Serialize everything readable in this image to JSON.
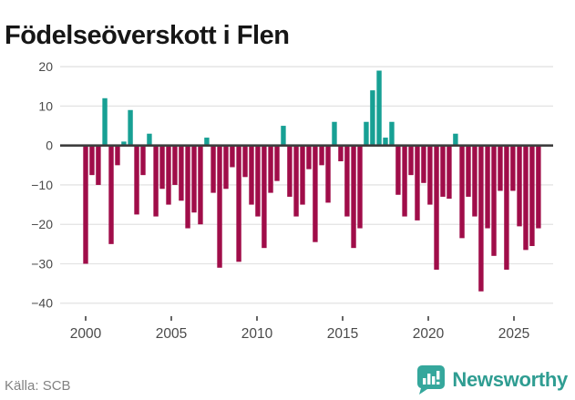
{
  "title": "Födelseöverskott i Flen",
  "footer": {
    "source": "Källa: SCB",
    "brand": "Newsworthy"
  },
  "chart_data": {
    "type": "bar",
    "title": "Födelseöverskott i Flen",
    "source": "Källa: SCB",
    "ylim": [
      -40,
      20
    ],
    "y_ticks": [
      20,
      10,
      0,
      -10,
      -20,
      -30,
      -40
    ],
    "x_ticks": [
      2000,
      2005,
      2010,
      2015,
      2020,
      2025
    ],
    "grid": true,
    "legend": "none",
    "colors": {
      "positive": "#17a094",
      "negative": "#a00d49",
      "zero_axis": "#3d3d3d",
      "gridline": "#e3e3e3",
      "tick_text": "#4a4a4a",
      "brand_teal": "#35a79c"
    },
    "x": [
      2000.0,
      2000.37,
      2000.74,
      2001.12,
      2001.49,
      2001.86,
      2002.23,
      2002.61,
      2002.98,
      2003.35,
      2003.72,
      2004.1,
      2004.47,
      2004.84,
      2005.21,
      2005.58,
      2005.96,
      2006.33,
      2006.7,
      2007.07,
      2007.45,
      2007.82,
      2008.19,
      2008.56,
      2008.94,
      2009.31,
      2009.68,
      2010.05,
      2010.42,
      2010.8,
      2011.17,
      2011.54,
      2011.91,
      2012.29,
      2012.66,
      2013.03,
      2013.4,
      2013.78,
      2014.15,
      2014.52,
      2014.89,
      2015.26,
      2015.64,
      2016.01,
      2016.38,
      2016.75,
      2017.13,
      2017.5,
      2017.87,
      2018.24,
      2018.62,
      2018.99,
      2019.36,
      2019.73,
      2020.1,
      2020.48,
      2020.85,
      2021.22,
      2021.59,
      2021.97,
      2022.34,
      2022.71,
      2023.08,
      2023.46,
      2023.83,
      2024.2,
      2024.57,
      2024.94,
      2025.32,
      2025.69,
      2026.06,
      2026.43
    ],
    "values": [
      -30,
      -7.5,
      -10,
      12,
      -25,
      -5,
      1,
      9,
      -17.5,
      -7.5,
      3,
      -18,
      -11,
      -15,
      -10,
      -14,
      -21,
      -17,
      -20,
      2,
      -12,
      -31,
      -11,
      -5.5,
      -29.5,
      -8,
      -15,
      -18,
      -26,
      -12,
      -9,
      5,
      -13,
      -18,
      -15,
      -6,
      -24.5,
      -5,
      -14.5,
      6,
      -4,
      -18,
      -26,
      -21,
      6,
      14,
      19,
      2,
      6,
      -12.5,
      -18,
      -7.5,
      -19,
      -9.5,
      -15,
      -31.5,
      -13,
      -13.5,
      3,
      -23.5,
      -13,
      -18,
      -37,
      -21,
      -28,
      -11.5,
      -31.5,
      -11.5,
      -20.5,
      -26.5,
      -25.5,
      -21
    ]
  }
}
